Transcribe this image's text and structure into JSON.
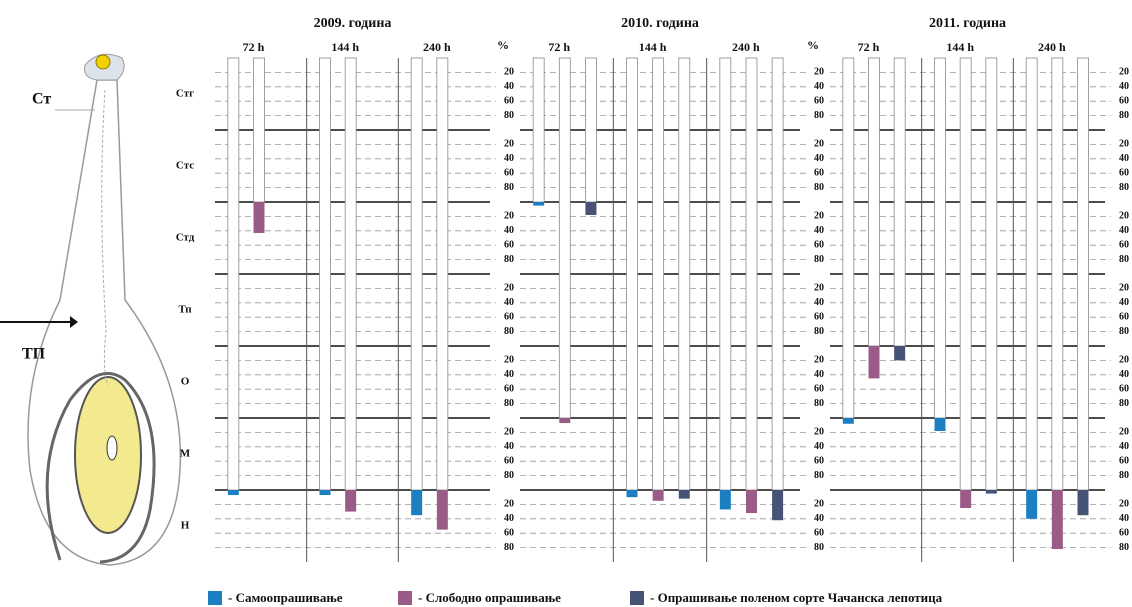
{
  "chart_data": {
    "type": "bar",
    "annotations": [
      "Ст",
      "ТП"
    ],
    "rows": [
      "Стг",
      "Стс",
      "Стд",
      "Тп",
      "О",
      "М",
      "Н"
    ],
    "unit": "%",
    "ylim": [
      0,
      100
    ],
    "yticks": [
      20,
      40,
      60,
      80
    ],
    "series": [
      {
        "name": "- Самоопрашивање",
        "color": "#1b7fc2"
      },
      {
        "name": "- Слободно опрашивање",
        "color": "#9a5b87"
      },
      {
        "name": "- Опрашивање поленом сорте Чачанска лепотица",
        "color": "#475374"
      }
    ],
    "panels": [
      {
        "title": "2009. година",
        "groups": [
          {
            "label": "72 h",
            "values": [
              [
                null,
                null,
                null,
                null,
                null,
                null,
                7
              ],
              [
                null,
                null,
                43,
                null,
                null,
                null,
                null
              ]
            ]
          },
          {
            "label": "144 h",
            "values": [
              [
                null,
                null,
                null,
                null,
                null,
                null,
                7
              ],
              [
                null,
                null,
                null,
                null,
                null,
                null,
                30
              ]
            ]
          },
          {
            "label": "240 h",
            "values": [
              [
                null,
                null,
                null,
                null,
                null,
                null,
                35
              ],
              [
                null,
                null,
                null,
                null,
                null,
                null,
                55
              ]
            ]
          }
        ]
      },
      {
        "title": "2010. година",
        "groups": [
          {
            "label": "72 h",
            "values": [
              [
                null,
                null,
                5,
                null,
                null,
                null,
                null
              ],
              [
                null,
                null,
                null,
                null,
                null,
                7,
                null
              ],
              [
                null,
                null,
                18,
                null,
                null,
                null,
                null
              ]
            ]
          },
          {
            "label": "144 h",
            "values": [
              [
                null,
                null,
                null,
                null,
                null,
                null,
                10
              ],
              [
                null,
                null,
                null,
                null,
                null,
                null,
                15
              ],
              [
                null,
                null,
                null,
                null,
                null,
                null,
                12
              ]
            ]
          },
          {
            "label": "240 h",
            "values": [
              [
                null,
                null,
                null,
                null,
                null,
                null,
                27
              ],
              [
                null,
                null,
                null,
                null,
                null,
                null,
                32
              ],
              [
                null,
                null,
                null,
                null,
                null,
                null,
                42
              ]
            ]
          }
        ]
      },
      {
        "title": "2011. година",
        "groups": [
          {
            "label": "72 h",
            "values": [
              [
                null,
                null,
                null,
                null,
                null,
                8,
                null
              ],
              [
                null,
                null,
                null,
                null,
                45,
                null,
                null
              ],
              [
                null,
                null,
                null,
                null,
                20,
                null,
                null
              ]
            ]
          },
          {
            "label": "144 h",
            "values": [
              [
                null,
                null,
                null,
                null,
                null,
                18,
                null
              ],
              [
                null,
                null,
                null,
                null,
                null,
                null,
                25
              ],
              [
                null,
                null,
                null,
                null,
                null,
                null,
                5
              ]
            ]
          },
          {
            "label": "240 h",
            "values": [
              [
                null,
                null,
                null,
                null,
                null,
                null,
                40
              ],
              [
                null,
                null,
                null,
                null,
                null,
                null,
                82
              ],
              [
                null,
                null,
                null,
                null,
                null,
                null,
                35
              ]
            ]
          }
        ]
      }
    ]
  }
}
